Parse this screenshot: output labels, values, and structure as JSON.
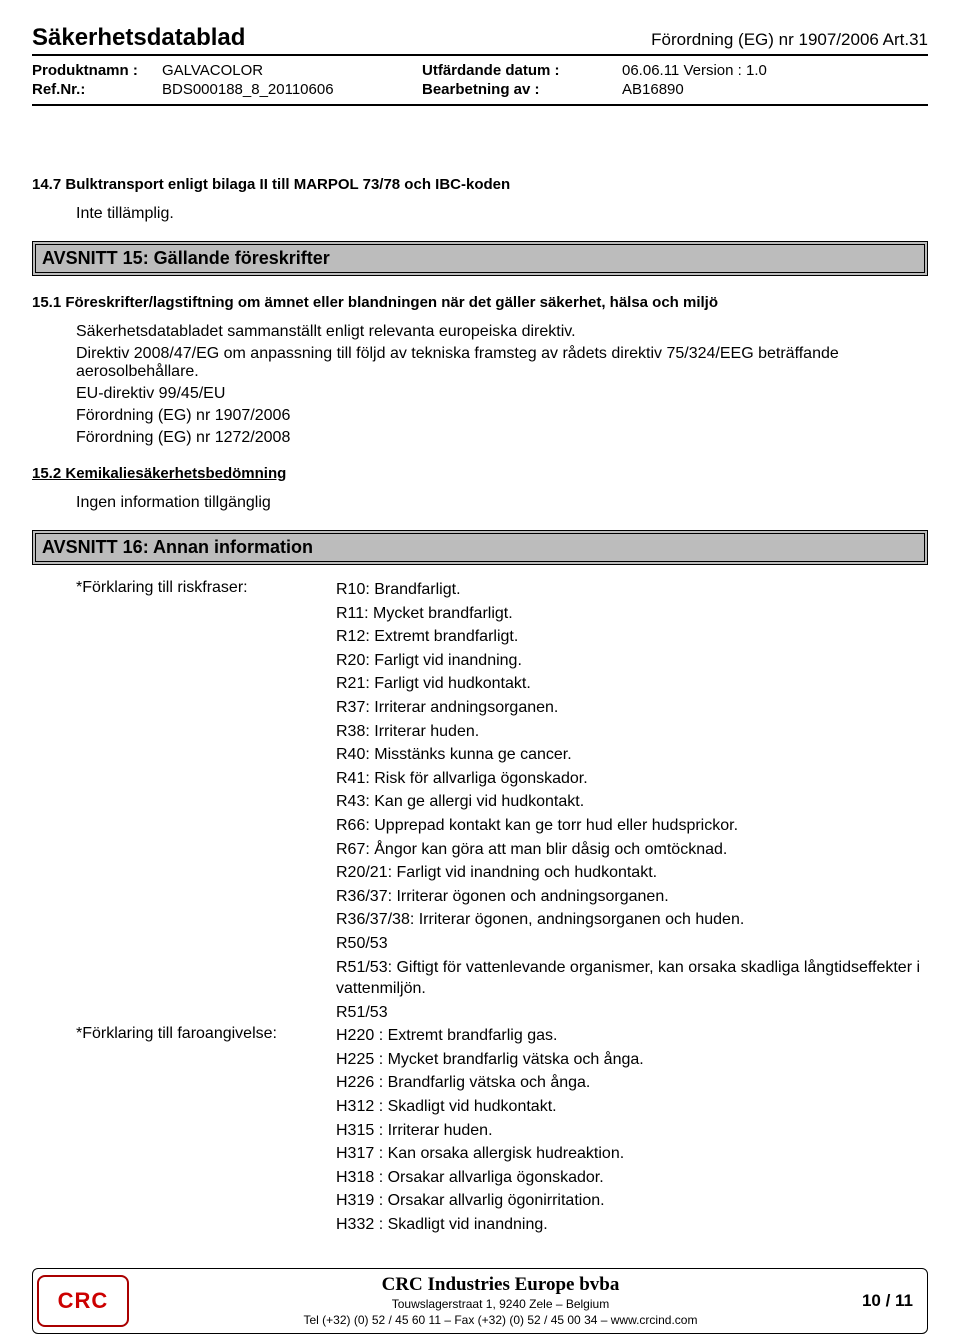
{
  "header": {
    "doc_title": "Säkerhetsdatablad",
    "regulation": "Förordning (EG) nr 1907/2006 Art.31"
  },
  "meta": {
    "product_label": "Produktnamn :",
    "product_value": "GALVACOLOR",
    "ref_label": "Ref.Nr.:",
    "ref_value": "BDS000188_8_20110606",
    "issue_label": "Utfärdande datum :",
    "issue_value": "06.06.11 Version : 1.0",
    "process_label": "Bearbetning av :",
    "process_value": "AB16890"
  },
  "section14_7": {
    "heading": "14.7 Bulktransport enligt bilaga II till MARPOL 73/78 och IBC-koden",
    "body": "Inte tillämplig."
  },
  "avsnitt15_title": "AVSNITT 15: Gällande föreskrifter",
  "section15_1": {
    "heading": "15.1 Föreskrifter/lagstiftning om ämnet eller blandningen när det gäller säkerhet, hälsa och miljö",
    "lines": [
      "Säkerhetsdatabladet sammanställt enligt relevanta europeiska direktiv.",
      "Direktiv 2008/47/EG om anpassning till följd av tekniska framsteg av rådets direktiv 75/324/EEG beträffande aerosolbehållare.",
      "EU-direktiv 99/45/EU",
      "Förordning (EG) nr 1907/2006",
      "Förordning (EG) nr 1272/2008"
    ]
  },
  "section15_2": {
    "heading": "15.2 Kemikaliesäkerhetsbedömning",
    "body": "Ingen information tillgänglig"
  },
  "avsnitt16_title": "AVSNITT 16: Annan information",
  "risk": {
    "label": "*Förklaring till riskfraser:",
    "lines": [
      "R10: Brandfarligt.",
      "R11: Mycket brandfarligt.",
      "R12: Extremt brandfarligt.",
      "R20: Farligt vid inandning.",
      "R21: Farligt vid hudkontakt.",
      "R37: Irriterar andningsorganen.",
      "R38: Irriterar huden.",
      "R40: Misstänks kunna ge cancer.",
      "R41: Risk för allvarliga ögonskador.",
      "R43: Kan ge allergi vid hudkontakt.",
      "R66: Upprepad kontakt kan ge torr hud eller hudsprickor.",
      "R67: Ångor kan göra att man blir dåsig och omtöcknad.",
      "R20/21: Farligt vid inandning och hudkontakt.",
      "R36/37: Irriterar ögonen och andningsorganen.",
      "R36/37/38: Irriterar ögonen, andningsorganen och huden.",
      "R50/53",
      "R51/53: Giftigt för vattenlevande organismer, kan orsaka skadliga långtidseffekter i vattenmiljön.",
      "R51/53"
    ]
  },
  "hazard": {
    "label": "*Förklaring till faroangivelse:",
    "lines": [
      "H220 : Extremt brandfarlig gas.",
      "H225 : Mycket brandfarlig vätska och ånga.",
      "H226 : Brandfarlig vätska och ånga.",
      "H312 : Skadligt vid hudkontakt.",
      "H315 : Irriterar huden.",
      "H317 : Kan orsaka allergisk hudreaktion.",
      "H318 : Orsakar allvarliga ögonskador.",
      "H319 : Orsakar allvarlig ögonirritation.",
      "H332 : Skadligt vid inandning."
    ]
  },
  "footer": {
    "logo_text": "CRC",
    "company": "CRC Industries Europe bvba",
    "address": "Touwslagerstraat 1, 9240 Zele – Belgium",
    "contact": "Tel (+32) (0) 52 / 45 60 11 – Fax (+32) (0) 52 / 45 00 34 – www.crcind.com",
    "page": "10 / 11"
  }
}
